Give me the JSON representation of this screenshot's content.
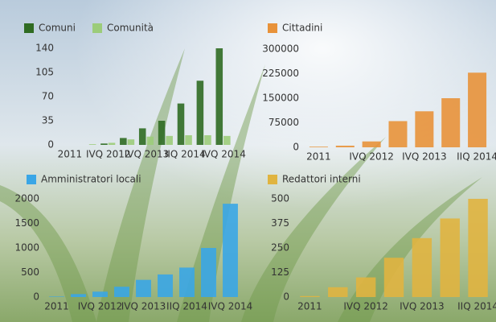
{
  "chart_data": [
    {
      "type": "bar",
      "categories": [
        "2011",
        null,
        "IVQ 2012",
        null,
        "IVQ 2013",
        null,
        "IIQ 2014",
        null,
        "IVQ 2014"
      ],
      "series": [
        {
          "name": "Comuni",
          "color": "#2f6b22",
          "values": [
            0,
            0,
            2,
            10,
            24,
            35,
            60,
            93,
            140
          ]
        },
        {
          "name": "Comunità",
          "color": "#9ccc7a",
          "values": [
            0,
            1,
            3,
            8,
            12,
            13,
            14,
            14,
            13
          ]
        }
      ],
      "ylim": [
        0,
        140
      ],
      "yticks": [
        0,
        35,
        70,
        105,
        140
      ]
    },
    {
      "type": "bar",
      "categories": [
        "2011",
        null,
        "IVQ 2012",
        null,
        "IVQ 2013",
        null,
        "IIQ 2014"
      ],
      "series": [
        {
          "name": "Cittadini",
          "color": "#e8923a",
          "values": [
            2000,
            5000,
            18000,
            80000,
            110000,
            150000,
            228000
          ]
        }
      ],
      "ylim": [
        0,
        300000
      ],
      "yticks": [
        0,
        75000,
        150000,
        225000,
        300000
      ]
    },
    {
      "type": "bar",
      "categories": [
        "2011",
        null,
        "IVQ 2012",
        null,
        "IVQ 2013",
        null,
        "IIQ 2014",
        null,
        "IVQ 2014"
      ],
      "series": [
        {
          "name": "Amministratori locali",
          "color": "#3aa6e6",
          "values": [
            10,
            60,
            110,
            210,
            350,
            460,
            600,
            1000,
            1900
          ]
        }
      ],
      "ylim": [
        0,
        2000
      ],
      "yticks": [
        0,
        500,
        1000,
        1500,
        2000
      ]
    },
    {
      "type": "bar",
      "categories": [
        "2011",
        null,
        "IVQ 2012",
        null,
        "IVQ 2013",
        null,
        "IIQ 2014"
      ],
      "series": [
        {
          "name": "Redattori interni",
          "color": "#e0b440",
          "values": [
            5,
            50,
            100,
            200,
            300,
            400,
            500
          ]
        }
      ],
      "ylim": [
        0,
        500
      ],
      "yticks": [
        0,
        125,
        250,
        375,
        500
      ]
    }
  ]
}
